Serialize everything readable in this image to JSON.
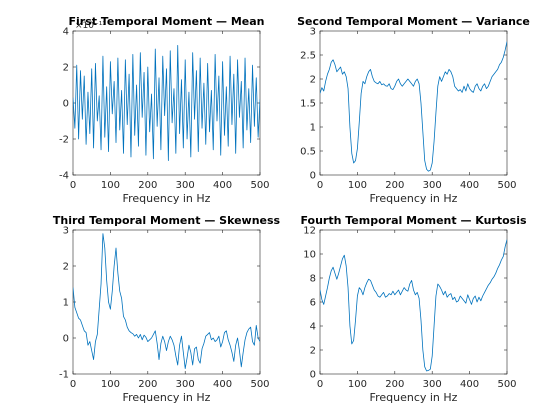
{
  "figure": {
    "line_color": "#0072bd"
  },
  "chart_data": [
    {
      "type": "line",
      "title": "First Temporal Moment — Mean",
      "xlabel": "Frequency in Hz",
      "ylabel": "",
      "xlim": [
        0,
        500
      ],
      "ylim": [
        -4,
        4
      ],
      "xticks": [
        "0",
        "100",
        "200",
        "300",
        "400",
        "500"
      ],
      "yticks": [
        "-4",
        "-2",
        "0",
        "2",
        "4"
      ],
      "y_exponent_label": "×10⁻¹³",
      "series": [
        {
          "x": [
            0,
            5,
            10,
            15,
            20,
            25,
            30,
            35,
            40,
            45,
            50,
            55,
            60,
            65,
            70,
            75,
            80,
            85,
            90,
            95,
            100,
            105,
            110,
            115,
            120,
            125,
            130,
            135,
            140,
            145,
            150,
            155,
            160,
            165,
            170,
            175,
            180,
            185,
            190,
            195,
            200,
            205,
            210,
            215,
            220,
            225,
            230,
            235,
            240,
            245,
            250,
            255,
            260,
            265,
            270,
            275,
            280,
            285,
            290,
            295,
            300,
            305,
            310,
            315,
            320,
            325,
            330,
            335,
            340,
            345,
            350,
            355,
            360,
            365,
            370,
            375,
            380,
            385,
            390,
            395,
            400,
            405,
            410,
            415,
            420,
            425,
            430,
            435,
            440,
            445,
            450,
            455,
            460,
            465,
            470,
            475,
            480,
            485,
            490,
            495,
            500
          ],
          "y": [
            0.3,
            -1.4,
            2.1,
            -2.0,
            1.8,
            -0.9,
            1.5,
            -2.3,
            0.6,
            -1.7,
            1.9,
            -2.5,
            2.2,
            -1.0,
            0.4,
            -2.6,
            2.6,
            -1.9,
            0.9,
            -2.7,
            2.3,
            -0.6,
            1.2,
            -2.2,
            2.5,
            -1.5,
            0.7,
            -2.8,
            2.4,
            -1.2,
            1.6,
            -3.0,
            2.7,
            -1.8,
            1.0,
            -2.4,
            2.8,
            -0.8,
            1.7,
            -2.9,
            2.0,
            -1.6,
            0.5,
            -3.1,
            3.0,
            -1.3,
            1.4,
            -2.6,
            2.6,
            -0.7,
            1.9,
            -3.2,
            2.9,
            -1.1,
            0.8,
            -2.8,
            3.2,
            -1.7,
            1.3,
            -2.5,
            2.4,
            -2.0,
            0.6,
            -3.0,
            2.8,
            -0.9,
            1.8,
            -2.7,
            2.5,
            -1.4,
            1.1,
            -2.3,
            2.2,
            -1.6,
            0.7,
            -2.6,
            2.7,
            -1.0,
            1.5,
            -2.9,
            2.3,
            -1.8,
            0.9,
            -2.4,
            2.6,
            -1.2,
            1.6,
            -2.8,
            2.4,
            -0.8,
            1.2,
            -2.5,
            2.5,
            -1.5,
            0.8,
            -2.2,
            2.1,
            -1.3,
            1.4,
            -1.9,
            0.2
          ]
        }
      ]
    },
    {
      "type": "line",
      "title": "Second Temporal Moment — Variance",
      "xlabel": "Frequency in Hz",
      "ylabel": "",
      "xlim": [
        0,
        500
      ],
      "ylim": [
        0,
        3
      ],
      "xticks": [
        "0",
        "100",
        "200",
        "300",
        "400",
        "500"
      ],
      "yticks": [
        "0",
        "0.5",
        "1",
        "1.5",
        "2",
        "2.5",
        "3"
      ],
      "series": [
        {
          "x": [
            0,
            5,
            10,
            15,
            20,
            25,
            30,
            35,
            40,
            45,
            50,
            55,
            60,
            65,
            70,
            75,
            80,
            85,
            90,
            95,
            100,
            105,
            110,
            115,
            120,
            125,
            130,
            135,
            140,
            145,
            150,
            155,
            160,
            165,
            170,
            175,
            180,
            185,
            190,
            195,
            200,
            205,
            210,
            215,
            220,
            225,
            230,
            235,
            240,
            245,
            250,
            255,
            260,
            265,
            270,
            275,
            280,
            285,
            290,
            295,
            300,
            305,
            310,
            315,
            320,
            325,
            330,
            335,
            340,
            345,
            350,
            355,
            360,
            365,
            370,
            375,
            380,
            385,
            390,
            395,
            400,
            405,
            410,
            415,
            420,
            425,
            430,
            435,
            440,
            445,
            450,
            455,
            460,
            465,
            470,
            475,
            480,
            485,
            490,
            495,
            500
          ],
          "y": [
            1.7,
            1.82,
            1.75,
            1.95,
            2.1,
            2.2,
            2.35,
            2.4,
            2.3,
            2.15,
            2.2,
            2.25,
            2.1,
            2.15,
            2.05,
            1.8,
            1.0,
            0.45,
            0.25,
            0.3,
            0.55,
            1.1,
            1.7,
            1.95,
            1.9,
            2.05,
            2.15,
            2.2,
            2.05,
            1.95,
            1.92,
            1.9,
            1.95,
            1.88,
            1.9,
            1.86,
            1.85,
            1.9,
            1.8,
            1.78,
            1.85,
            1.95,
            2.0,
            1.9,
            1.85,
            1.9,
            1.95,
            2.0,
            1.95,
            1.9,
            1.85,
            1.95,
            2.0,
            1.9,
            1.5,
            0.9,
            0.3,
            0.12,
            0.08,
            0.1,
            0.25,
            0.7,
            1.3,
            1.85,
            2.05,
            1.95,
            2.05,
            2.15,
            2.1,
            2.2,
            2.15,
            2.05,
            1.85,
            1.8,
            1.75,
            1.78,
            1.72,
            1.85,
            1.75,
            1.9,
            1.8,
            1.75,
            1.72,
            1.85,
            1.9,
            1.8,
            1.75,
            1.85,
            1.9,
            1.8,
            1.85,
            1.95,
            2.05,
            2.1,
            2.15,
            2.2,
            2.3,
            2.35,
            2.45,
            2.6,
            2.78
          ]
        }
      ]
    },
    {
      "type": "line",
      "title": "Third Temporal Moment — Skewness",
      "xlabel": "Frequency in Hz",
      "ylabel": "",
      "xlim": [
        0,
        500
      ],
      "ylim": [
        -1,
        3
      ],
      "xticks": [
        "0",
        "100",
        "200",
        "300",
        "400",
        "500"
      ],
      "yticks": [
        "-1",
        "0",
        "1",
        "2",
        "3"
      ],
      "series": [
        {
          "x": [
            0,
            5,
            10,
            15,
            20,
            25,
            30,
            35,
            40,
            45,
            50,
            55,
            60,
            65,
            70,
            75,
            80,
            85,
            90,
            95,
            100,
            105,
            110,
            115,
            120,
            125,
            130,
            135,
            140,
            145,
            150,
            155,
            160,
            165,
            170,
            175,
            180,
            185,
            190,
            195,
            200,
            205,
            210,
            215,
            220,
            225,
            230,
            235,
            240,
            245,
            250,
            255,
            260,
            265,
            270,
            275,
            280,
            285,
            290,
            295,
            300,
            305,
            310,
            315,
            320,
            325,
            330,
            335,
            340,
            345,
            350,
            355,
            360,
            365,
            370,
            375,
            380,
            385,
            390,
            395,
            400,
            405,
            410,
            415,
            420,
            425,
            430,
            435,
            440,
            445,
            450,
            455,
            460,
            465,
            470,
            475,
            480,
            485,
            490,
            495,
            500
          ],
          "y": [
            1.4,
            0.85,
            0.7,
            0.55,
            0.5,
            0.35,
            0.2,
            0.15,
            -0.2,
            -0.1,
            -0.35,
            -0.6,
            -0.1,
            0.1,
            0.8,
            1.5,
            2.9,
            2.5,
            1.6,
            1.0,
            0.8,
            1.3,
            2.0,
            2.5,
            1.8,
            1.3,
            1.1,
            0.6,
            0.5,
            0.3,
            0.2,
            0.15,
            0.12,
            0.05,
            0.1,
            0.0,
            0.1,
            -0.05,
            0.08,
            0.02,
            -0.1,
            -0.05,
            0.0,
            0.1,
            0.2,
            -0.15,
            -0.6,
            -0.15,
            0.05,
            -0.1,
            -0.35,
            -0.1,
            0.05,
            -0.05,
            -0.2,
            -0.5,
            -0.75,
            -0.2,
            0.05,
            -0.4,
            -0.85,
            -0.55,
            -0.2,
            -0.4,
            -0.75,
            -0.3,
            -0.25,
            -0.6,
            -0.7,
            -0.3,
            -0.15,
            0.05,
            0.1,
            0.15,
            -0.05,
            0.0,
            -0.1,
            -0.05,
            0.05,
            -0.25,
            -0.1,
            0.15,
            0.2,
            -0.05,
            -0.2,
            -0.4,
            -0.65,
            -0.2,
            0.0,
            -0.35,
            -0.8,
            -0.4,
            -0.05,
            0.15,
            0.25,
            0.3,
            -0.1,
            -0.2,
            0.35,
            0.0,
            -0.1
          ]
        }
      ]
    },
    {
      "type": "line",
      "title": "Fourth Temporal Moment — Kurtosis",
      "xlabel": "Frequency in Hz",
      "ylabel": "",
      "xlim": [
        0,
        500
      ],
      "ylim": [
        0,
        12
      ],
      "xticks": [
        "0",
        "100",
        "200",
        "300",
        "400",
        "500"
      ],
      "yticks": [
        "0",
        "2",
        "4",
        "6",
        "8",
        "10",
        "12"
      ],
      "series": [
        {
          "x": [
            0,
            5,
            10,
            15,
            20,
            25,
            30,
            35,
            40,
            45,
            50,
            55,
            60,
            65,
            70,
            75,
            80,
            85,
            90,
            95,
            100,
            105,
            110,
            115,
            120,
            125,
            130,
            135,
            140,
            145,
            150,
            155,
            160,
            165,
            170,
            175,
            180,
            185,
            190,
            195,
            200,
            205,
            210,
            215,
            220,
            225,
            230,
            235,
            240,
            245,
            250,
            255,
            260,
            265,
            270,
            275,
            280,
            285,
            290,
            295,
            300,
            305,
            310,
            315,
            320,
            325,
            330,
            335,
            340,
            345,
            350,
            355,
            360,
            365,
            370,
            375,
            380,
            385,
            390,
            395,
            400,
            405,
            410,
            415,
            420,
            425,
            430,
            435,
            440,
            445,
            450,
            455,
            460,
            465,
            470,
            475,
            480,
            485,
            490,
            495,
            500
          ],
          "y": [
            7.0,
            6.2,
            5.8,
            6.5,
            7.2,
            8.0,
            8.6,
            8.9,
            8.4,
            7.9,
            8.4,
            9.0,
            9.6,
            9.9,
            9.0,
            7.2,
            4.0,
            2.5,
            2.8,
            4.5,
            6.5,
            7.2,
            7.0,
            6.6,
            7.2,
            7.6,
            7.9,
            7.8,
            7.4,
            7.0,
            6.8,
            6.5,
            6.4,
            6.6,
            6.8,
            6.4,
            6.5,
            6.7,
            6.6,
            6.9,
            6.6,
            6.8,
            7.0,
            6.6,
            6.9,
            7.2,
            7.0,
            6.9,
            7.5,
            7.8,
            7.0,
            6.6,
            6.8,
            6.3,
            4.5,
            2.0,
            0.6,
            0.25,
            0.3,
            0.4,
            1.5,
            4.0,
            6.5,
            7.5,
            7.3,
            7.0,
            6.6,
            6.9,
            6.4,
            6.6,
            6.7,
            6.2,
            6.4,
            6.0,
            6.1,
            6.5,
            6.3,
            6.1,
            5.9,
            6.6,
            6.2,
            5.8,
            6.3,
            6.5,
            6.0,
            6.4,
            6.1,
            6.5,
            6.8,
            7.1,
            7.4,
            7.6,
            7.9,
            8.1,
            8.4,
            8.8,
            9.1,
            9.5,
            9.8,
            10.6,
            11.2
          ]
        }
      ]
    }
  ]
}
